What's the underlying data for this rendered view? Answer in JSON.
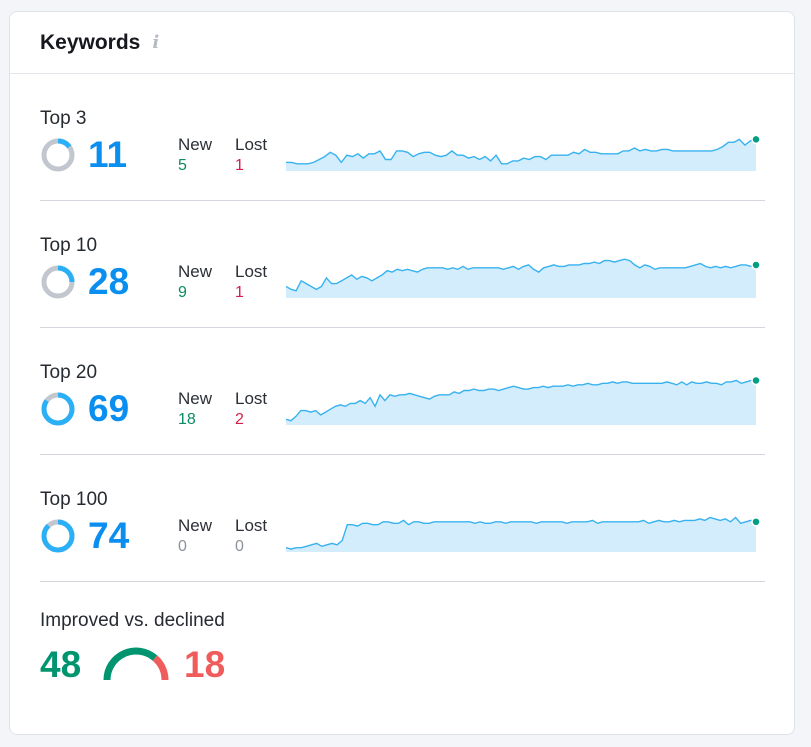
{
  "widget": {
    "title": "Keywords",
    "info_icon": "info-icon"
  },
  "rows": [
    {
      "label": "Top 3",
      "count": "11",
      "share": 0.15,
      "new_label": "New",
      "new": "5",
      "lost_label": "Lost",
      "lost": "1",
      "trend": [
        6,
        6,
        5,
        5,
        5,
        6,
        8,
        10,
        13,
        11,
        6,
        11,
        10,
        12,
        9,
        12,
        12,
        14,
        8,
        8,
        14,
        14,
        13,
        10,
        12,
        13,
        13,
        11,
        10,
        11,
        14,
        11,
        11,
        9,
        10,
        8,
        10,
        7,
        11,
        5,
        5,
        7,
        7,
        9,
        8,
        10,
        10,
        8,
        11,
        11,
        11,
        11,
        13,
        12,
        15,
        13,
        13,
        12,
        12,
        12,
        12,
        14,
        14,
        16,
        14,
        15,
        14,
        14,
        15,
        15,
        14,
        14,
        14,
        14,
        14,
        14,
        14,
        14,
        15,
        17,
        20,
        20,
        22,
        18,
        21,
        22
      ]
    },
    {
      "label": "Top 10",
      "count": "28",
      "share": 0.25,
      "new_label": "New",
      "new": "9",
      "lost_label": "Lost",
      "lost": "1",
      "trend": [
        8,
        6,
        5,
        12,
        10,
        8,
        6,
        8,
        14,
        10,
        10,
        12,
        14,
        16,
        13,
        15,
        14,
        12,
        14,
        16,
        19,
        18,
        20,
        19,
        20,
        19,
        18,
        20,
        21,
        21,
        21,
        21,
        20,
        21,
        20,
        22,
        20,
        21,
        21,
        21,
        21,
        21,
        21,
        20,
        21,
        22,
        20,
        22,
        23,
        20,
        18,
        21,
        22,
        23,
        22,
        22,
        23,
        23,
        23,
        24,
        24,
        25,
        24,
        26,
        26,
        25,
        26,
        27,
        26,
        23,
        21,
        23,
        22,
        20,
        21,
        21,
        21,
        21,
        21,
        21,
        22,
        23,
        24,
        22,
        21,
        22,
        21,
        22,
        21,
        22,
        23,
        23,
        22,
        23
      ]
    },
    {
      "label": "Top 20",
      "count": "69",
      "share": 0.85,
      "new_label": "New",
      "new": "18",
      "lost_label": "Lost",
      "lost": "2",
      "trend": [
        4,
        3,
        6,
        10,
        10,
        9,
        10,
        7,
        9,
        11,
        13,
        14,
        13,
        15,
        15,
        17,
        15,
        19,
        13,
        21,
        17,
        21,
        20,
        21,
        21,
        22,
        21,
        20,
        19,
        18,
        20,
        21,
        21,
        21,
        23,
        22,
        24,
        24,
        25,
        24,
        24,
        25,
        25,
        24,
        25,
        26,
        27,
        26,
        25,
        25,
        26,
        26,
        27,
        26,
        27,
        27,
        27,
        28,
        27,
        28,
        28,
        29,
        28,
        28,
        29,
        29,
        30,
        29,
        30,
        30,
        29,
        29,
        29,
        29,
        29,
        29,
        29,
        30,
        29,
        28,
        30,
        28,
        30,
        29,
        29,
        30,
        29,
        29,
        28,
        30,
        30,
        31,
        29,
        30,
        31,
        31
      ]
    },
    {
      "label": "Top 100",
      "count": "74",
      "share": 0.88,
      "new_label": "New",
      "new": "0",
      "lost_label": "Lost",
      "lost": "0",
      "trend": [
        3,
        2,
        3,
        3,
        4,
        5,
        6,
        4,
        5,
        6,
        5,
        8,
        19,
        19,
        18,
        20,
        20,
        19,
        19,
        21,
        21,
        20,
        20,
        22,
        19,
        21,
        21,
        20,
        20,
        21,
        21,
        21,
        21,
        21,
        21,
        21,
        21,
        20,
        21,
        20,
        20,
        21,
        21,
        20,
        21,
        21,
        21,
        21,
        21,
        20,
        21,
        21,
        21,
        21,
        21,
        20,
        21,
        21,
        21,
        21,
        22,
        20,
        21,
        21,
        21,
        21,
        21,
        21,
        21,
        21,
        22,
        20,
        21,
        22,
        21,
        21,
        22,
        21,
        22,
        22,
        22,
        23,
        22,
        24,
        23,
        22,
        23,
        21,
        24,
        20,
        21,
        22,
        21
      ]
    }
  ],
  "improved_vs_declined": {
    "label": "Improved vs. declined",
    "improved": "48",
    "declined": "18",
    "improved_share": 0.727
  },
  "colors": {
    "primary": "#0a8ff0",
    "donut_fill": "#2bb0f7",
    "donut_track": "#c2c6ce",
    "spark_line": "#38b2ef",
    "spark_area": "#d4edfc",
    "spark_dot": "#009f81",
    "improved": "#00946f",
    "declined": "#f05c5c"
  }
}
